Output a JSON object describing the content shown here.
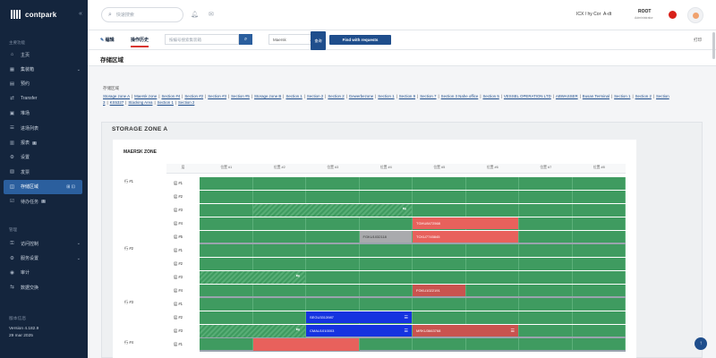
{
  "app": {
    "name": "contpark"
  },
  "sidebar": {
    "section_main": "主要功能",
    "items": [
      {
        "label": "主页",
        "icon": "home-icon"
      },
      {
        "label": "集装箱",
        "icon": "container-icon"
      },
      {
        "label": "预约",
        "icon": "calendar-icon"
      },
      {
        "label": "Transfer",
        "icon": "transfer-icon"
      },
      {
        "label": "堆场",
        "icon": "yard-icon"
      },
      {
        "label": "进场列表",
        "icon": "list-icon"
      },
      {
        "label": "报表",
        "icon": "report-icon",
        "badge": "4"
      },
      {
        "label": "设置",
        "icon": "settings-icon"
      },
      {
        "label": "发票",
        "icon": "invoice-icon"
      },
      {
        "label": "存储区域",
        "icon": "storage-icon",
        "active": true
      },
      {
        "label": "待办任务",
        "icon": "task-icon",
        "badge": "3"
      }
    ],
    "section_admin": "管理",
    "admin_items": [
      {
        "label": "访问控制",
        "icon": "lock-icon"
      },
      {
        "label": "服务设置",
        "icon": "gear-icon"
      },
      {
        "label": "审计",
        "icon": "audit-icon"
      },
      {
        "label": "数据交换",
        "icon": "exchange-icon"
      }
    ],
    "version_label": "版本信息",
    "version": "Version 4.182.9",
    "version_date": "29 mar 2025"
  },
  "header": {
    "search_placeholder": "快速搜索",
    "company": "ICX / hy Cor",
    "company_suffix": "A-dt",
    "user": "ROOT",
    "user_sub": "Administrator"
  },
  "toolbar": {
    "tab_edit": "编辑",
    "tab_history": "操作历史",
    "filter_placeholder": "按编号搜索集装箱",
    "select_value": "Maersk",
    "square_btn": "查询",
    "find_btn": "Find with requests",
    "print": "打印"
  },
  "page": {
    "title": "存储区域"
  },
  "areas": {
    "label": "存储区域",
    "sections": [
      "Storage zone A",
      "Maersk zone",
      "Section #4",
      "Section #2",
      "Section #3",
      "Section #5",
      "Storage zone B",
      "Section 1",
      "Section 2",
      "Section 2",
      "Gewerbezone",
      "Section 1",
      "Section 9",
      "Section 7",
      "Section 3 Nahe office",
      "Section 5",
      "VESSEL OPERATION LTD",
      "ABWASSER",
      "Busan Terminal",
      "Section 1",
      "Section 2",
      "Section 3",
      "KS5327",
      "Stacking Area",
      "Section 1",
      "Section 2"
    ]
  },
  "zone": {
    "title": "STORAGE ZONE A",
    "subtitle": "MAERSK ZONE",
    "corner": "层",
    "columns": [
      "位置 #1",
      "位置 #2",
      "位置 #3",
      "位置 #4",
      "位置 #5",
      "位置 #6",
      "位置 #7",
      "位置 #8"
    ],
    "rows": [
      {
        "label": "行 #1",
        "shelves": [
          "层 #1",
          "层 #2",
          "层 #3",
          "层 #4",
          "层 #5"
        ]
      },
      {
        "label": "行 #2",
        "shelves": [
          "层 #1",
          "层 #2",
          "层 #3",
          "层 #4"
        ]
      },
      {
        "label": "行 #3",
        "shelves": [
          "层 #1",
          "层 #2",
          "层 #3"
        ]
      },
      {
        "label": "行 #4",
        "shelves": [
          "层 #1"
        ]
      }
    ],
    "slots": [
      {
        "id": "TGHU8472568",
        "color": "red"
      },
      {
        "id": "FGKU1032118",
        "color": "grey"
      },
      {
        "id": "TCKU7745845",
        "color": "red"
      },
      {
        "id": "FGKU1022191",
        "color": "dred"
      },
      {
        "id": "SEGU3313987",
        "color": "blue"
      },
      {
        "id": "CMAU1010003",
        "color": "blue"
      },
      {
        "id": "MRKU3663768",
        "color": "dred"
      }
    ]
  }
}
